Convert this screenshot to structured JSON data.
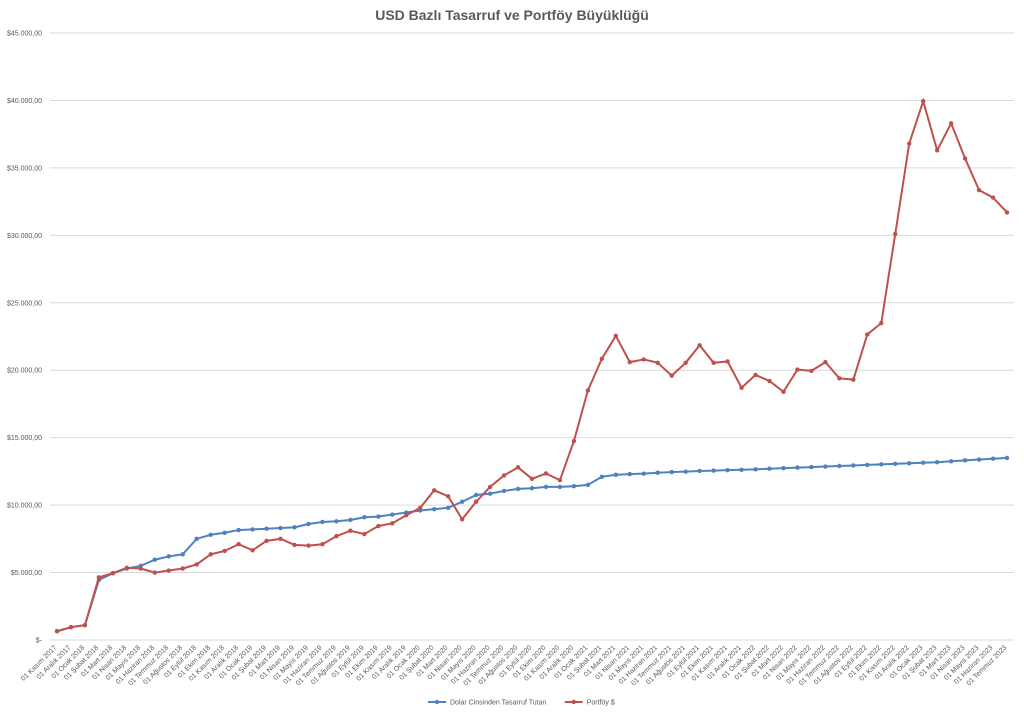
{
  "chart_data": {
    "type": "line",
    "title": "USD Bazlı Tasarruf ve Portföy Büyüklüğü",
    "categories": [
      "01 Kasım 2017",
      "01 Aralık 2017",
      "01 Ocak 2018",
      "01 Şubat 2018",
      "01 Mart 2018",
      "01 Nisan 2018",
      "01 Mayıs 2018",
      "01 Haziran 2018",
      "01 Temmuz 2018",
      "01 Ağustos 2018",
      "01 Eylül 2018",
      "01 Ekim 2018",
      "01 Kasım 2018",
      "01 Aralık 2018",
      "01 Ocak 2019",
      "01 Şubat 2019",
      "01 Mart 2019",
      "01 Nisan 2019",
      "01 Mayıs 2019",
      "01 Haziran 2019",
      "01 Temmuz 2019",
      "01 Ağustos 2019",
      "01 Eylül 2019",
      "01 Ekim 2019",
      "01 Kasım 2019",
      "01 Aralık 2019",
      "01 Ocak 2020",
      "01 Şubat 2020",
      "01 Mart 2020",
      "01 Nisan 2020",
      "01 Mayıs 2020",
      "01 Haziran 2020",
      "01 Temmuz 2020",
      "01 Ağustos 2020",
      "01 Eylül 2020",
      "01 Ekim 2020",
      "01 Kasım 2020",
      "01 Aralık 2020",
      "01 Ocak 2021",
      "01 Şubat 2021",
      "01 Mart 2021",
      "01 Nisan 2021",
      "01 Mayıs 2021",
      "01 Haziran 2021",
      "01 Temmuz 2021",
      "01 Ağustos 2021",
      "01 Eylül 2021",
      "01 Ekim 2021",
      "01 Kasım 2021",
      "01 Aralık 2021",
      "01 Ocak 2022",
      "01 Şubat 2022",
      "01 Mart 2022",
      "01 Nisan 2022",
      "01 Mayıs 2022",
      "01 Haziran 2022",
      "01 Temmuz 2022",
      "01 Ağustos 2022",
      "01 Eylül 2022",
      "01 Ekim 2022",
      "01 Kasım 2022",
      "01 Aralık 2022",
      "01 Ocak 2023",
      "01 Şubat 2023",
      "01 Mart 2023",
      "01 Nisan 2023",
      "01 Mayıs 2023",
      "01 Haziran 2023",
      "01 Temmuz 2023"
    ],
    "series": [
      {
        "name": "Dolar Cinsinden Tasarruf Tutarı",
        "color": "#4f81bd",
        "values": [
          650,
          950,
          1100,
          4450,
          4950,
          5300,
          5500,
          5950,
          6200,
          6350,
          7500,
          7800,
          7950,
          8150,
          8200,
          8250,
          8300,
          8350,
          8600,
          8750,
          8800,
          8900,
          9100,
          9150,
          9300,
          9450,
          9600,
          9700,
          9800,
          10250,
          10750,
          10850,
          11050,
          11200,
          11250,
          11350,
          11350,
          11400,
          11500,
          12100,
          12250,
          12300,
          12330,
          12400,
          12450,
          12480,
          12530,
          12560,
          12590,
          12620,
          12650,
          12700,
          12740,
          12780,
          12820,
          12860,
          12900,
          12940,
          12980,
          13020,
          13060,
          13100,
          13140,
          13180,
          13250,
          13320,
          13380,
          13440,
          13500
        ]
      },
      {
        "name": "Portföy $",
        "color": "#c0504d",
        "values": [
          650,
          950,
          1100,
          4650,
          4950,
          5350,
          5300,
          5000,
          5150,
          5300,
          5600,
          6350,
          6600,
          7100,
          6650,
          7350,
          7500,
          7050,
          7000,
          7100,
          7700,
          8100,
          7850,
          8450,
          8650,
          9250,
          9800,
          11100,
          10650,
          8950,
          10250,
          11350,
          12200,
          12800,
          11950,
          12350,
          11850,
          14750,
          18500,
          20850,
          22550,
          20600,
          20800,
          20550,
          19600,
          20550,
          21850,
          20550,
          20650,
          18700,
          19650,
          19200,
          18400,
          20050,
          19950,
          20600,
          19400,
          19300,
          22650,
          23500,
          30100,
          36800,
          39950,
          36300,
          38300,
          35700,
          33350,
          32800,
          31700
        ]
      }
    ],
    "ylim": [
      0,
      45000
    ],
    "yticks": [
      {
        "value": 0,
        "label": "$-"
      },
      {
        "value": 5000,
        "label": "$5.000,00"
      },
      {
        "value": 10000,
        "label": "$10.000,00"
      },
      {
        "value": 15000,
        "label": "$15.000,00"
      },
      {
        "value": 20000,
        "label": "$20.000,00"
      },
      {
        "value": 25000,
        "label": "$25.000,00"
      },
      {
        "value": 30000,
        "label": "$30.000,00"
      },
      {
        "value": 35000,
        "label": "$35.000,00"
      },
      {
        "value": 40000,
        "label": "$40.000,00"
      },
      {
        "value": 45000,
        "label": "$45.000,00"
      }
    ],
    "grid": true,
    "legend": "bottom"
  }
}
